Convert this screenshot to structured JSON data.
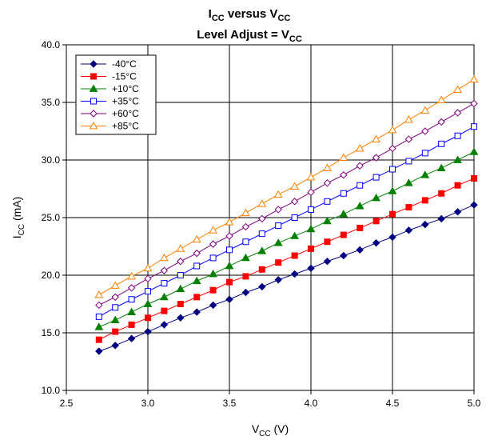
{
  "chart_data": {
    "type": "line",
    "title": "I_CC versus V_CC",
    "title_parts": {
      "main": "I",
      "sub": "CC",
      "rest": " versus V",
      "sub2": "CC"
    },
    "subtitle_parts": {
      "main": "Level Adjust = V",
      "sub": "CC"
    },
    "xlabel_parts": {
      "main": "V",
      "sub": "CC",
      "rest": " (V)"
    },
    "ylabel_parts": {
      "main": "I",
      "sub": "CC",
      "rest": " (mA)"
    },
    "xlim": [
      2.5,
      5.0
    ],
    "ylim": [
      10.0,
      40.0
    ],
    "xticks": [
      "2.5",
      "3.0",
      "3.5",
      "4.0",
      "4.5",
      "5.0"
    ],
    "yticks": [
      "10.0",
      "15.0",
      "20.0",
      "25.0",
      "30.0",
      "35.0",
      "40.0"
    ],
    "grid": true,
    "legend_position": "top-left",
    "x": [
      2.7,
      2.8,
      2.9,
      3.0,
      3.1,
      3.2,
      3.3,
      3.4,
      3.5,
      3.6,
      3.7,
      3.8,
      3.9,
      4.0,
      4.1,
      4.2,
      4.3,
      4.4,
      4.5,
      4.6,
      4.7,
      4.8,
      4.9,
      5.0
    ],
    "series": [
      {
        "name": "-40°C",
        "color": "#000080",
        "marker": "diamond-filled",
        "values": [
          13.4,
          13.9,
          14.5,
          15.1,
          15.7,
          16.3,
          16.8,
          17.4,
          17.9,
          18.5,
          19.0,
          19.6,
          20.1,
          20.6,
          21.2,
          21.7,
          22.2,
          22.8,
          23.3,
          23.9,
          24.4,
          24.9,
          25.5,
          26.1
        ]
      },
      {
        "name": "-15°C",
        "color": "#FF0000",
        "marker": "square-filled",
        "values": [
          14.4,
          15.1,
          15.7,
          16.3,
          16.9,
          17.5,
          18.1,
          18.7,
          19.4,
          19.9,
          20.5,
          21.1,
          21.7,
          22.3,
          22.9,
          23.5,
          24.1,
          24.7,
          25.3,
          25.9,
          26.5,
          27.1,
          27.8,
          28.4
        ]
      },
      {
        "name": "+10°C",
        "color": "#008000",
        "marker": "triangle-filled",
        "values": [
          15.5,
          16.1,
          16.8,
          17.5,
          18.1,
          18.8,
          19.5,
          20.1,
          20.8,
          21.5,
          22.1,
          22.8,
          23.4,
          24.0,
          24.7,
          25.3,
          26.0,
          26.7,
          27.3,
          28.0,
          28.7,
          29.3,
          30.0,
          30.7
        ]
      },
      {
        "name": "+35°C",
        "color": "#0000FF",
        "marker": "square-open",
        "values": [
          16.4,
          17.2,
          17.9,
          18.6,
          19.3,
          20.0,
          20.8,
          21.5,
          22.2,
          22.9,
          23.6,
          24.3,
          25.0,
          25.7,
          26.4,
          27.1,
          27.8,
          28.5,
          29.2,
          29.9,
          30.6,
          31.4,
          32.1,
          32.9
        ]
      },
      {
        "name": "+60°C",
        "color": "#800080",
        "marker": "diamond-open",
        "values": [
          17.4,
          18.1,
          18.9,
          19.7,
          20.4,
          21.2,
          21.9,
          22.7,
          23.4,
          24.2,
          24.9,
          25.7,
          26.4,
          27.2,
          28.0,
          28.7,
          29.5,
          30.2,
          31.0,
          31.8,
          32.5,
          33.3,
          34.1,
          34.9
        ]
      },
      {
        "name": "+85°C",
        "color": "#FF8000",
        "marker": "triangle-open",
        "values": [
          18.3,
          19.1,
          19.9,
          20.6,
          21.5,
          22.3,
          23.1,
          23.9,
          24.6,
          25.4,
          26.2,
          27.0,
          27.7,
          28.5,
          29.3,
          30.2,
          31.0,
          31.8,
          32.6,
          33.5,
          34.3,
          35.2,
          36.1,
          37.0
        ]
      }
    ]
  }
}
